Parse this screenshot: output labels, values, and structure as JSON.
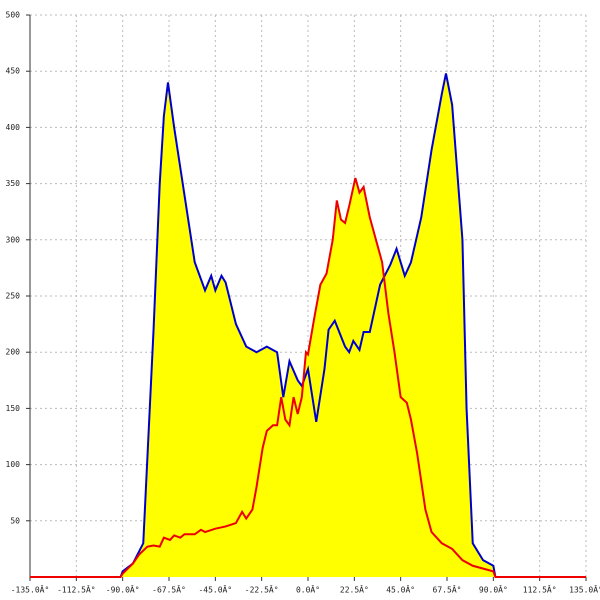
{
  "chart_data": {
    "type": "area",
    "xlim": [
      -135,
      135
    ],
    "ylim": [
      0,
      500
    ],
    "xticks": [
      {
        "value": -135,
        "label": "-135.0Â°"
      },
      {
        "value": -112.5,
        "label": "-112.5Â°"
      },
      {
        "value": -90,
        "label": "-90.0Â°"
      },
      {
        "value": -67.5,
        "label": "-67.5Â°"
      },
      {
        "value": -45,
        "label": "-45.0Â°"
      },
      {
        "value": -22.5,
        "label": "-22.5Â°"
      },
      {
        "value": 0,
        "label": "0.0Â°"
      },
      {
        "value": 22.5,
        "label": "22.5Â°"
      },
      {
        "value": 45,
        "label": "45.0Â°"
      },
      {
        "value": 67.5,
        "label": "67.5Â°"
      },
      {
        "value": 90,
        "label": "90.0Â°"
      },
      {
        "value": 112.5,
        "label": "112.5Â°"
      },
      {
        "value": 135,
        "label": "135.0Â°"
      }
    ],
    "yticks": [
      50,
      100,
      150,
      200,
      250,
      300,
      350,
      400,
      450,
      500
    ],
    "grid": true,
    "fill_color": "#ffff00",
    "series": [
      {
        "color": "#0000cc",
        "x": [
          -91,
          -90,
          -85,
          -80,
          -75,
          -72,
          -70,
          -68,
          -65,
          -60,
          -55,
          -50,
          -47,
          -45,
          -42,
          -40,
          -35,
          -30,
          -25,
          -20,
          -15,
          -12,
          -9,
          -5,
          -3,
          0,
          4,
          8,
          10,
          13,
          18,
          20,
          22,
          25,
          27,
          30,
          35,
          40,
          43,
          47,
          50,
          55,
          60,
          65,
          67,
          70,
          75,
          77,
          80,
          85,
          90,
          91
        ],
        "values": [
          0,
          5,
          12,
          30,
          220,
          350,
          410,
          440,
          400,
          340,
          280,
          255,
          268,
          255,
          268,
          262,
          225,
          205,
          200,
          205,
          200,
          160,
          192,
          175,
          170,
          185,
          138,
          185,
          220,
          228,
          205,
          200,
          210,
          202,
          218,
          218,
          260,
          278,
          292,
          268,
          280,
          320,
          380,
          430,
          448,
          420,
          300,
          150,
          30,
          15,
          10,
          0
        ]
      },
      {
        "color": "#ee0000",
        "x": [
          -135,
          -91,
          -90,
          -85,
          -82,
          -78,
          -75,
          -72,
          -70,
          -67,
          -65,
          -62,
          -60,
          -55,
          -52,
          -50,
          -45,
          -40,
          -35,
          -32,
          -30,
          -27,
          -25,
          -22,
          -20,
          -17,
          -15,
          -13,
          -11,
          -9,
          -7,
          -5,
          -3,
          -1,
          0,
          3,
          6,
          9,
          12,
          14,
          16,
          18,
          20,
          23,
          25,
          27,
          30,
          33,
          36,
          39,
          42,
          45,
          48,
          50,
          53,
          57,
          60,
          65,
          70,
          75,
          80,
          90,
          91,
          135
        ],
        "values": [
          0,
          0,
          3,
          12,
          20,
          27,
          28,
          27,
          35,
          33,
          37,
          35,
          38,
          38,
          42,
          40,
          43,
          45,
          48,
          58,
          52,
          60,
          80,
          115,
          130,
          135,
          135,
          160,
          140,
          135,
          160,
          145,
          160,
          200,
          198,
          230,
          260,
          270,
          300,
          335,
          318,
          315,
          330,
          355,
          342,
          347,
          320,
          300,
          280,
          235,
          200,
          160,
          155,
          140,
          110,
          60,
          40,
          30,
          25,
          15,
          10,
          5,
          0,
          0
        ]
      }
    ]
  }
}
